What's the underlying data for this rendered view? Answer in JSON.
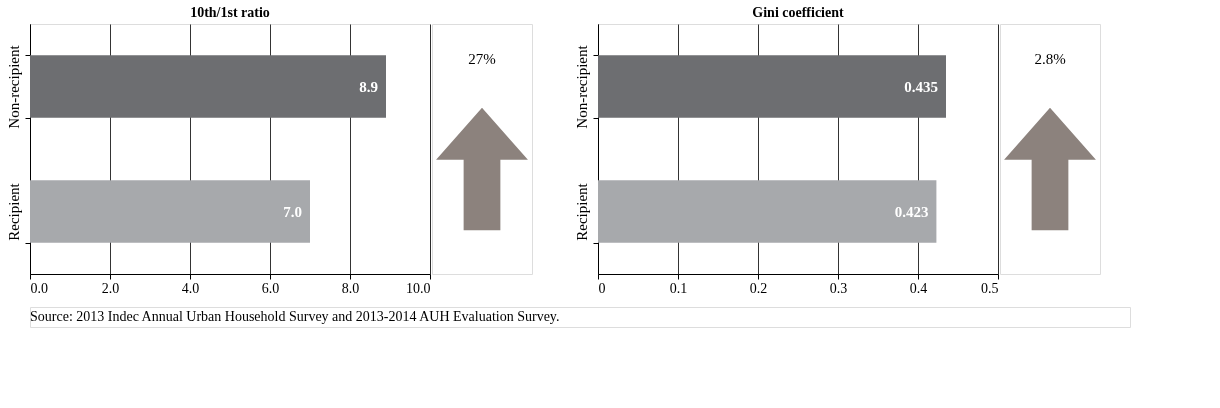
{
  "chart_data": [
    {
      "type": "bar",
      "orientation": "horizontal",
      "title": "10th/1st ratio",
      "categories": [
        "Non-recipient",
        "Recipient"
      ],
      "values": [
        8.9,
        7.0
      ],
      "colors": [
        "#6d6e71",
        "#a7a9ac"
      ],
      "value_labels": [
        "8.9",
        "7.0"
      ],
      "xlim": [
        0,
        10
      ],
      "xticks": [
        {
          "value": 0,
          "label": "0.0"
        },
        {
          "value": 2,
          "label": "2.0"
        },
        {
          "value": 4,
          "label": "4.0"
        },
        {
          "value": 6,
          "label": "6.0"
        },
        {
          "value": 8,
          "label": "8.0"
        },
        {
          "value": 10,
          "label": "10.0"
        }
      ],
      "grid": "x",
      "annotations": [
        "27%",
        "Source: 2013 Indec Annual Urban Household Survey and 2013-2014 AUH Evaluation Survey."
      ]
    },
    {
      "type": "bar",
      "orientation": "horizontal",
      "title": "Gini coefficient",
      "categories": [
        "Non-recipient",
        "Recipient"
      ],
      "values": [
        0.435,
        0.423
      ],
      "colors": [
        "#6d6e71",
        "#a7a9ac"
      ],
      "data_labels": true,
      "xlim": [
        0,
        0.5
      ],
      "xticks": [
        0,
        0.1,
        0.2,
        0.3,
        0.4,
        0.5
      ],
      "grid": "x",
      "annotations": [
        "2.8%"
      ]
    }
  ]
}
